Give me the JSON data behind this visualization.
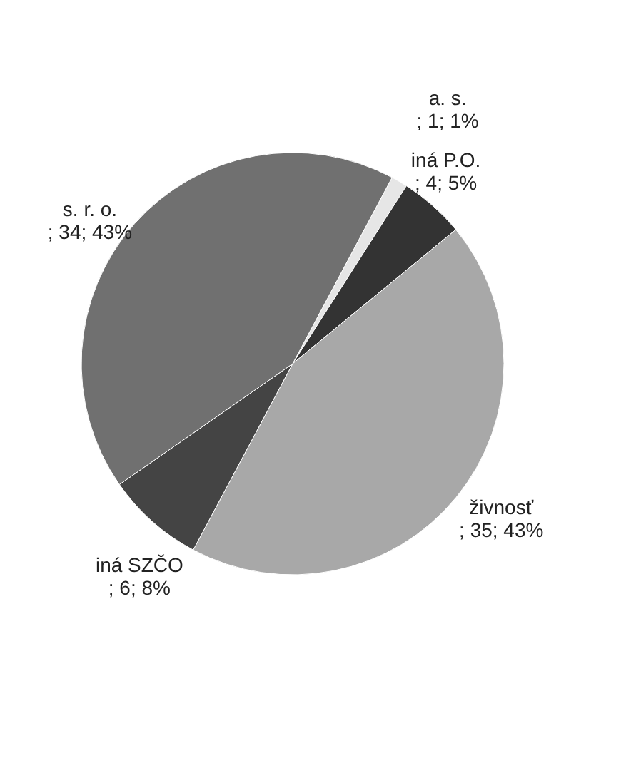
{
  "chart_data": {
    "type": "pie",
    "categories": [
      "a. s.",
      "iná P.O.",
      "živnosť",
      "iná SZČO",
      "s. r. o."
    ],
    "values": [
      1,
      4,
      35,
      6,
      34
    ],
    "value_labels": [
      "; 1; 1%",
      "; 4; 5%",
      "; 35; 43%",
      "; 6; 8%",
      "; 34; 43%"
    ],
    "colors": [
      "#e6e6e6",
      "#333333",
      "#a8a8a8",
      "#444444",
      "#707070"
    ],
    "legend": false
  }
}
